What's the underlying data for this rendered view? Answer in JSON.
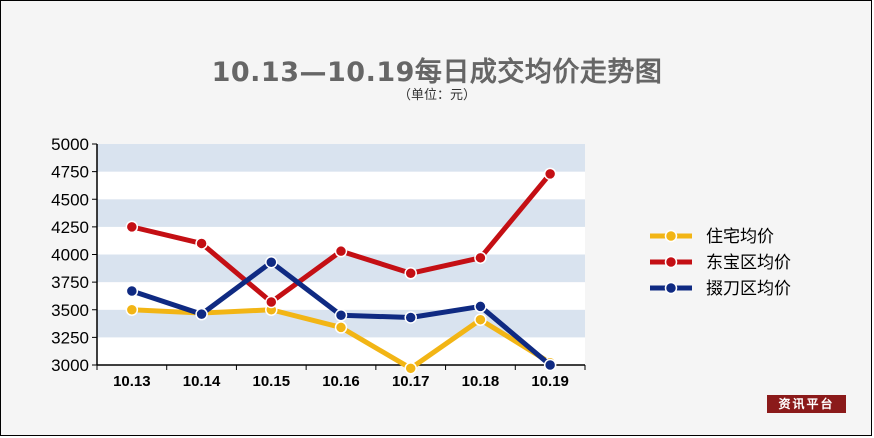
{
  "title": "10.13—10.19每日成交均价走势图",
  "subtitle": "（单位：元）",
  "badge": "资讯平台",
  "chart_data": {
    "type": "line",
    "categories": [
      "10.13",
      "10.14",
      "10.15",
      "10.16",
      "10.17",
      "10.18",
      "10.19"
    ],
    "ylim": [
      3000,
      5000
    ],
    "yticks": [
      3000,
      3250,
      3500,
      3750,
      4000,
      4250,
      4500,
      4750,
      5000
    ],
    "grid": "alternating horizontal bands",
    "legend_position": "right",
    "series": [
      {
        "name": "住宅均价",
        "color": "#f2b515",
        "values": [
          3500,
          3470,
          3500,
          3340,
          2970,
          3410,
          3020
        ]
      },
      {
        "name": "东宝区均价",
        "color": "#c40f14",
        "values": [
          4250,
          4100,
          3570,
          4030,
          3830,
          3970,
          4730
        ]
      },
      {
        "name": "掇刀区均价",
        "color": "#0f2a82",
        "values": [
          3670,
          3460,
          3930,
          3450,
          3430,
          3530,
          3000
        ]
      }
    ]
  }
}
